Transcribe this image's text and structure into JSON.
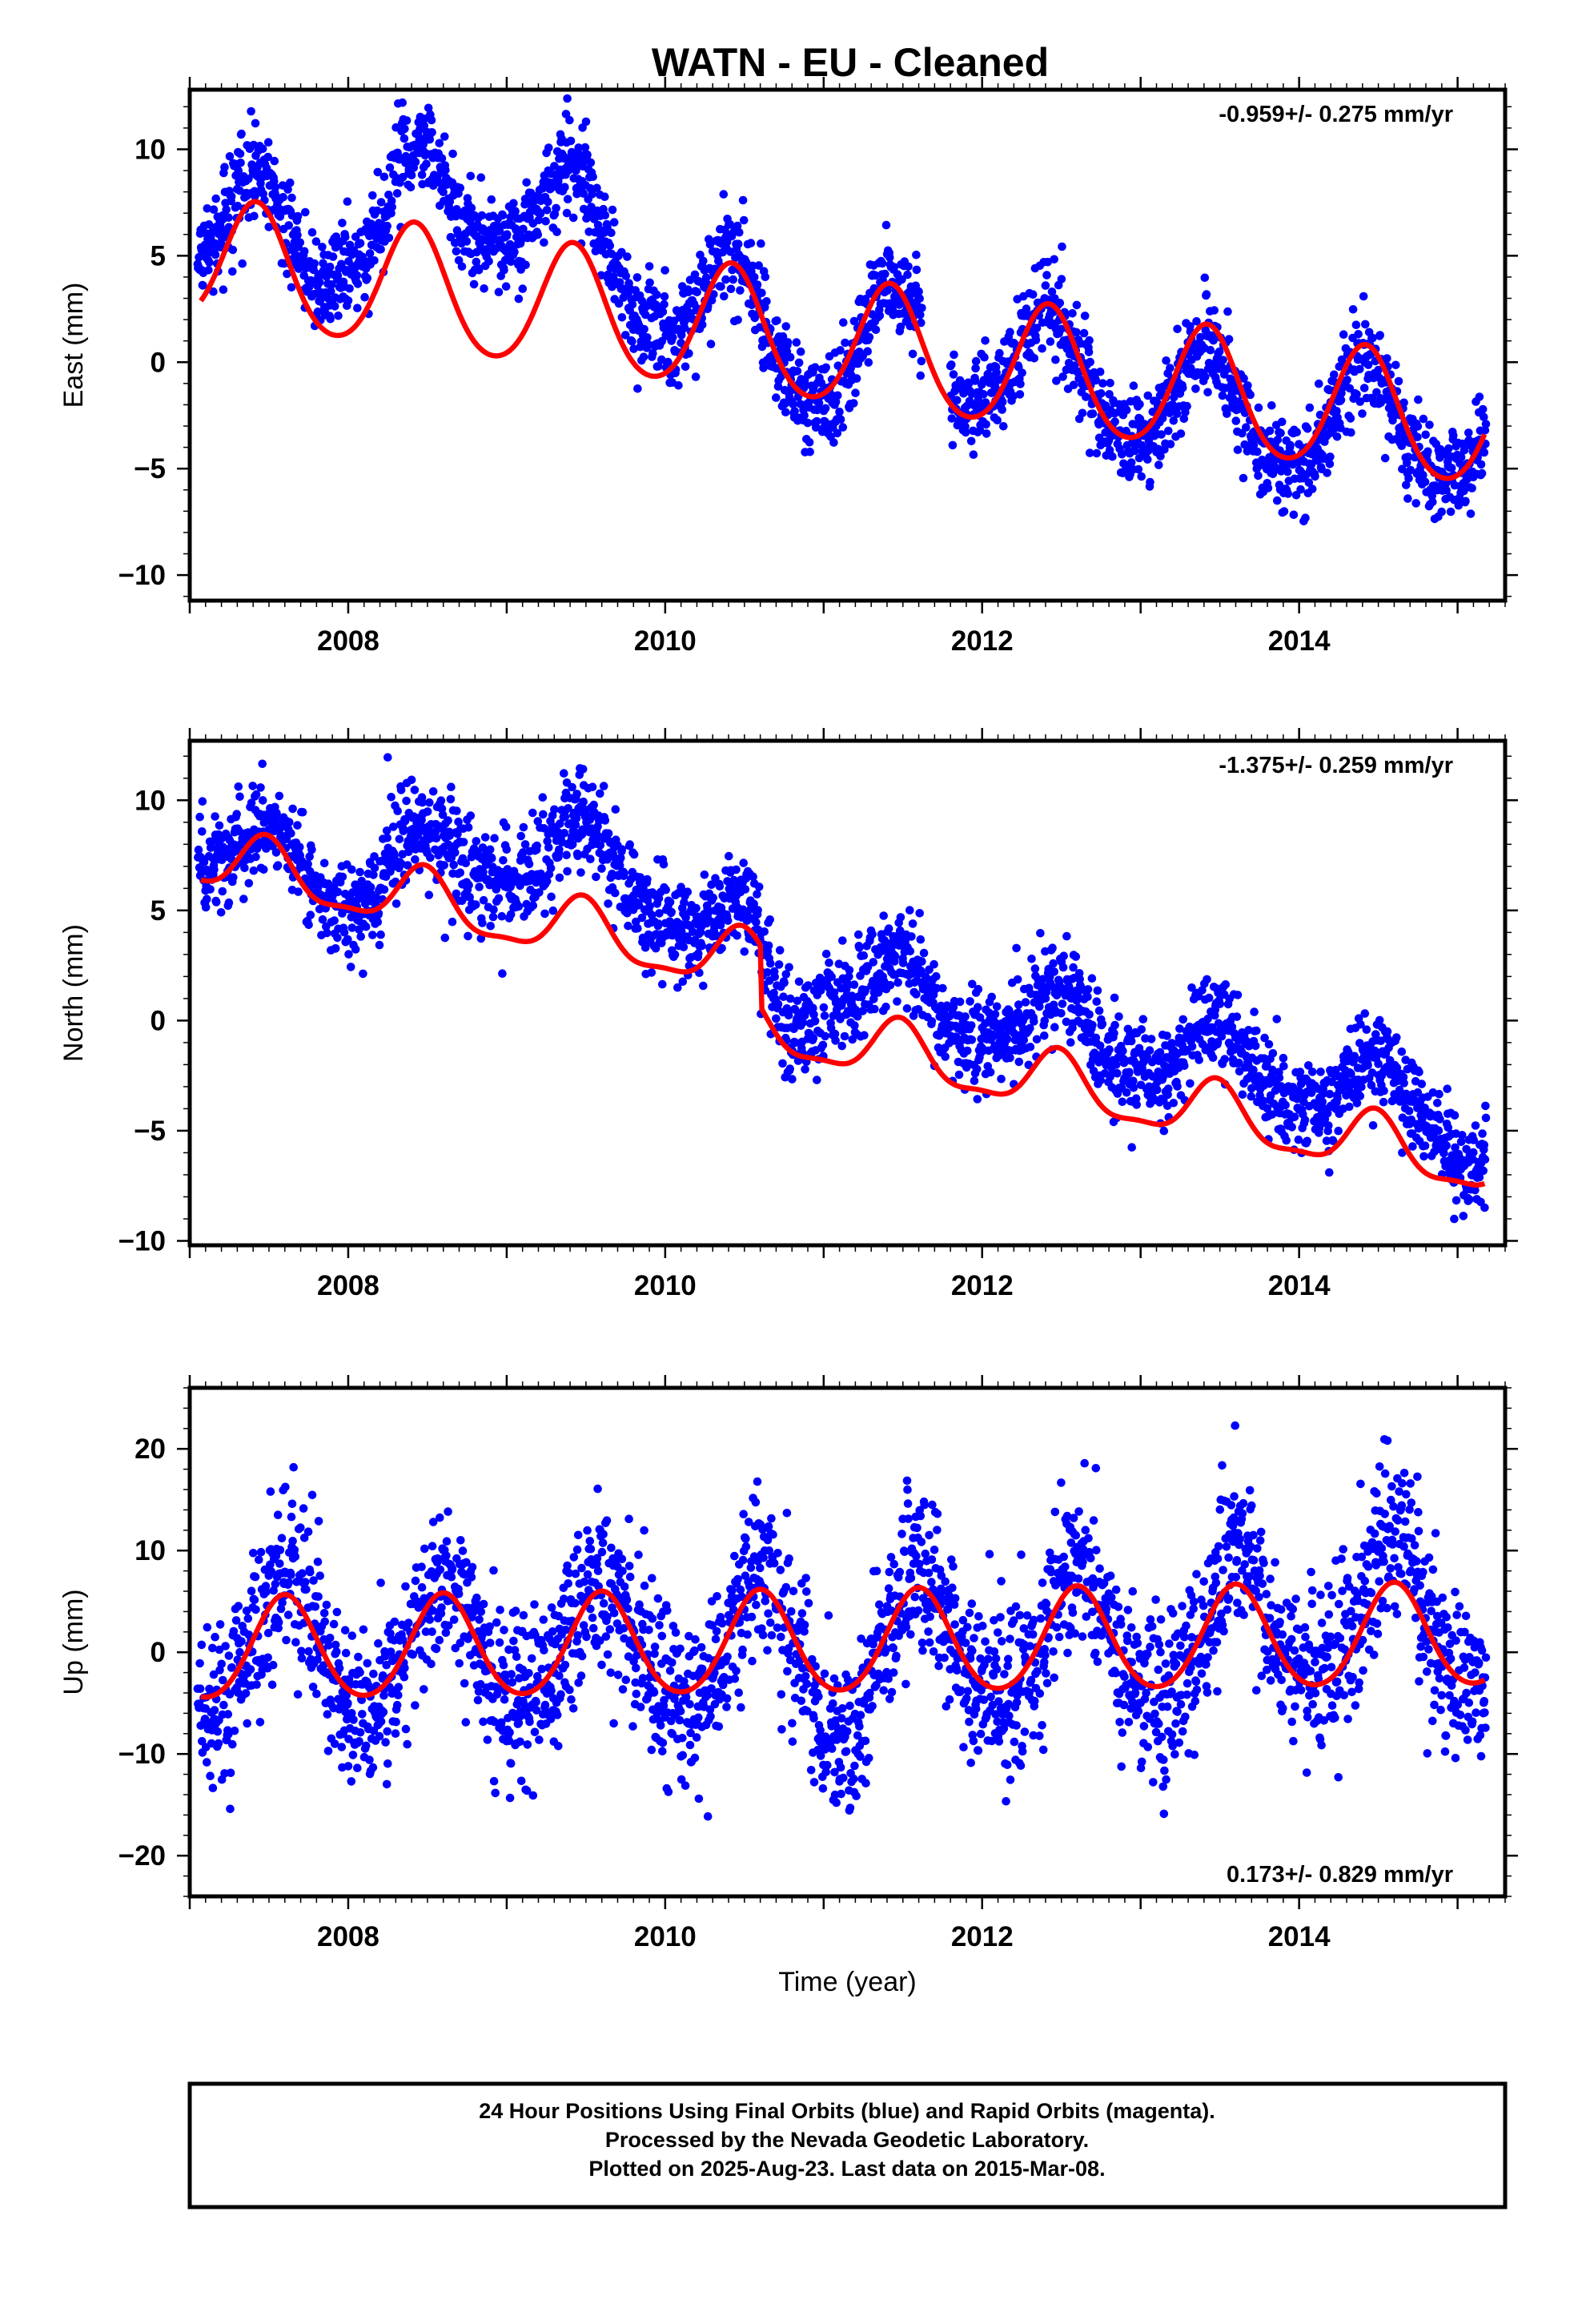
{
  "title": "WATN  - EU - Cleaned",
  "colors": {
    "final_orbits": "#0000ff",
    "model_fit": "#ff0000",
    "frame": "#000000"
  },
  "footer": {
    "lines": [
      "24 Hour Positions Using Final Orbits (blue) and Rapid Orbits (magenta).",
      "Processed by the Nevada Geodetic Laboratory.",
      "Plotted on 2025-Aug-23. Last data on 2015-Mar-08."
    ]
  },
  "chart_data": [
    {
      "type": "scatter",
      "ylabel": "East (mm)",
      "xlabel": "",
      "rate_label": "-0.959+/- 0.275 mm/yr",
      "rate_position": "top-right",
      "xlim": [
        2007.0,
        2015.3
      ],
      "ylim": [
        -11.2,
        12.8
      ],
      "xticks": [
        2008,
        2010,
        2012,
        2014
      ],
      "yticks": [
        -10,
        -5,
        0,
        5,
        10
      ],
      "series": [
        {
          "role": "daily positions",
          "style": "dots",
          "trend": {
            "t0": 2007.15,
            "value": 6.3,
            "rate": -1.18
          },
          "seasonal": {
            "annual_amplitude": 2.6,
            "peak_phase": 0.42,
            "semiannual_amplitude": 0.4
          },
          "anomalies": [
            {
              "from": 2007.9,
              "to": 2010.0,
              "shift": 3.5
            },
            {
              "from": 2010.5,
              "to": 2011.5,
              "shift": -1.5
            },
            {
              "from": 2011.8,
              "to": 2015.2,
              "shift": -1.0
            }
          ],
          "gaps": [
            [
              2011.62,
              2011.8
            ]
          ],
          "scatter": 1.1,
          "range": [
            2007.05,
            2015.18
          ]
        },
        {
          "role": "model fit",
          "style": "line",
          "trend": {
            "t0": 2007.15,
            "value": 4.6,
            "rate": -0.959
          },
          "seasonal": {
            "annual_amplitude": 2.9,
            "peak_phase": 0.42,
            "semiannual_amplitude": 0.3
          },
          "range": [
            2007.07,
            2015.17
          ]
        }
      ]
    },
    {
      "type": "scatter",
      "ylabel": "North (mm)",
      "xlabel": "",
      "rate_label": "-1.375+/- 0.259 mm/yr",
      "rate_position": "top-right",
      "xlim": [
        2007.0,
        2015.3
      ],
      "ylim": [
        -10.2,
        12.7
      ],
      "xticks": [
        2008,
        2010,
        2012,
        2014
      ],
      "yticks": [
        -10,
        -5,
        0,
        5,
        10
      ],
      "series": [
        {
          "role": "daily positions",
          "style": "dots",
          "trend": {
            "t0": 2007.15,
            "value": 7.8,
            "rate": -1.52
          },
          "seasonal": {
            "annual_amplitude": 1.5,
            "peak_phase": 0.48,
            "semiannual_amplitude": 0.3
          },
          "anomalies": [
            {
              "from": 2008.2,
              "to": 2010.6,
              "shift": 3.0
            },
            {
              "from": 2010.6,
              "to": 2011.0,
              "shift": -2.0
            },
            {
              "from": 2014.9,
              "to": 2015.2,
              "shift": -1.5
            }
          ],
          "gaps": [],
          "scatter": 1.1,
          "range": [
            2007.05,
            2015.18
          ]
        },
        {
          "role": "model fit",
          "style": "line",
          "trend": {
            "t0": 2007.15,
            "value": 7.2,
            "rate": -1.375
          },
          "seasonal": {
            "annual_amplitude": 1.3,
            "peak_phase": 0.48,
            "semiannual_amplitude": 0.4
          },
          "steps": [
            {
              "at": 2010.6,
              "offset": -2.8
            }
          ],
          "range": [
            2007.07,
            2015.17
          ]
        }
      ]
    },
    {
      "type": "scatter",
      "ylabel": "Up (mm)",
      "xlabel": "Time (year)",
      "rate_label": "0.173+/- 0.829 mm/yr",
      "rate_position": "bottom-right",
      "xlim": [
        2007.0,
        2015.3
      ],
      "ylim": [
        -24.0,
        26.0
      ],
      "xticks": [
        2008,
        2010,
        2012,
        2014
      ],
      "yticks": [
        -20,
        -10,
        0,
        10,
        20
      ],
      "series": [
        {
          "role": "daily positions",
          "style": "dots",
          "trend": {
            "t0": 2007.15,
            "value": 0.0,
            "rate": 0.173
          },
          "seasonal": {
            "annual_amplitude": 6.5,
            "peak_phase": 0.6,
            "semiannual_amplitude": 1.0
          },
          "anomalies": [
            {
              "from": 2010.9,
              "to": 2011.3,
              "shift": -4.0
            },
            {
              "from": 2013.5,
              "to": 2015.2,
              "shift": 2.5
            }
          ],
          "gaps": [],
          "scatter": 4.2,
          "range": [
            2007.05,
            2015.18
          ]
        },
        {
          "role": "model fit",
          "style": "line",
          "trend": {
            "t0": 2007.15,
            "value": 0.1,
            "rate": 0.173
          },
          "seasonal": {
            "annual_amplitude": 5.0,
            "peak_phase": 0.6,
            "semiannual_amplitude": 0.5
          },
          "range": [
            2007.07,
            2015.17
          ]
        }
      ]
    }
  ]
}
